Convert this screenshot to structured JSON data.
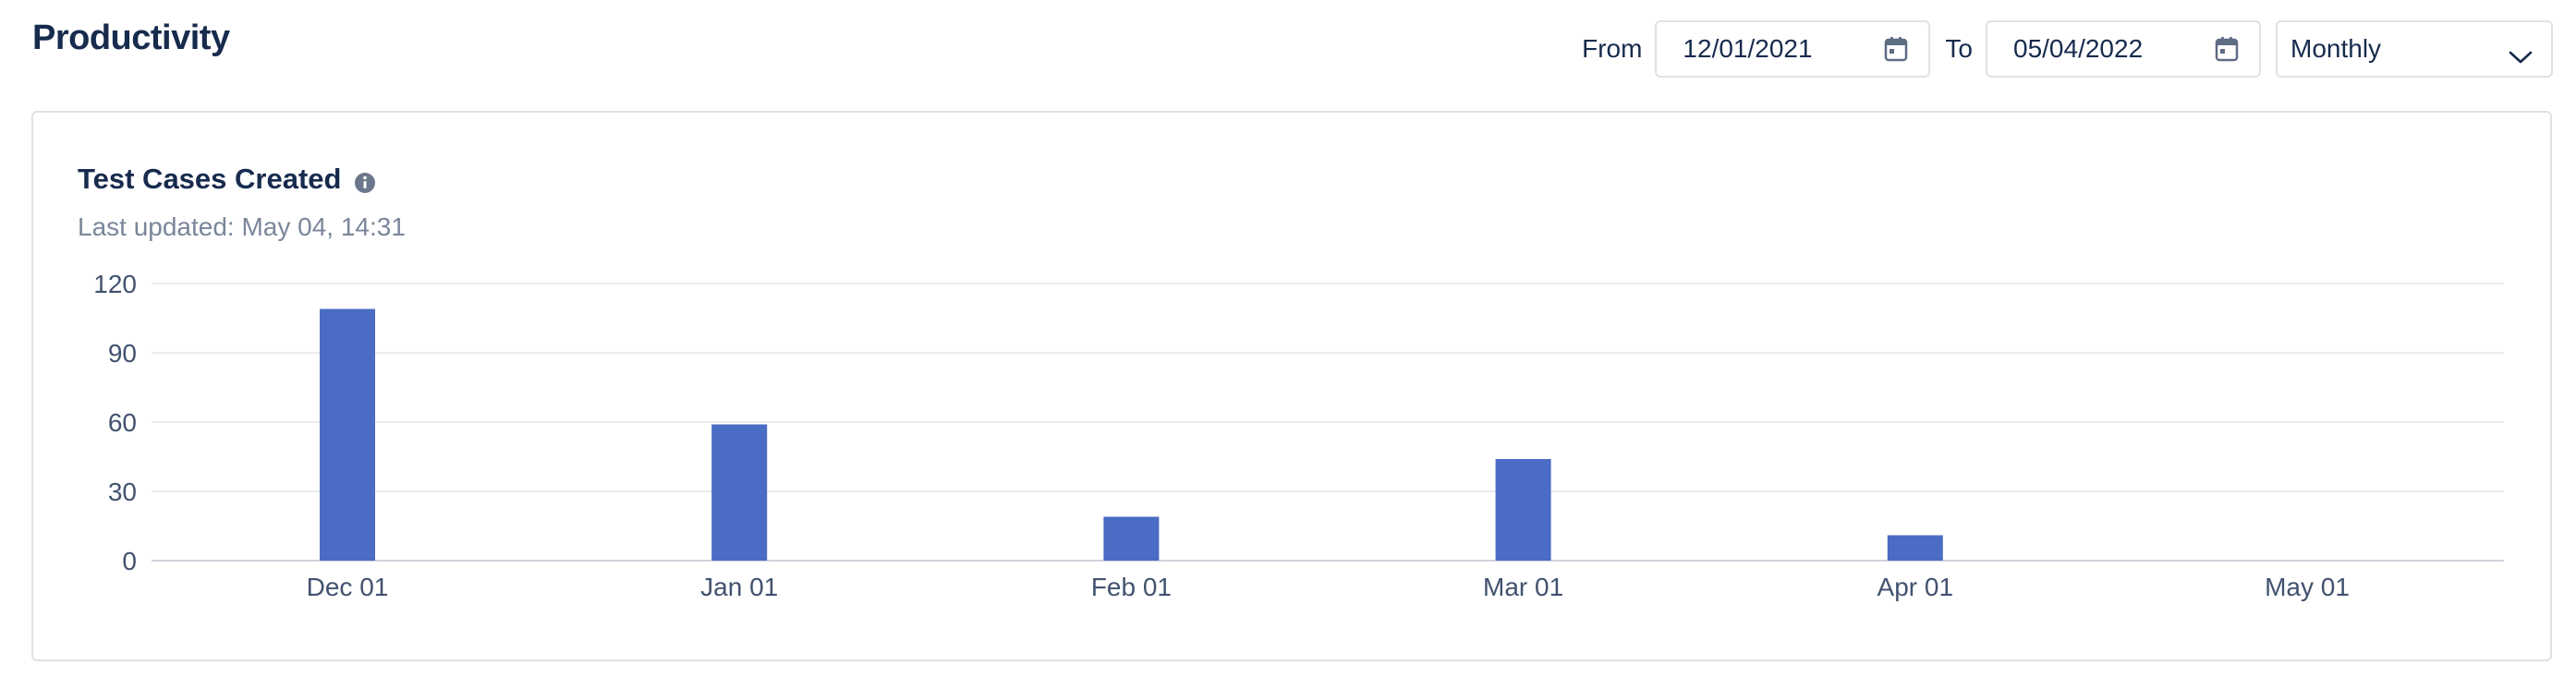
{
  "header": {
    "title": "Productivity"
  },
  "filters": {
    "from_label": "From",
    "from_value": "12/01/2021",
    "to_label": "To",
    "to_value": "05/04/2022",
    "interval_value": "Monthly"
  },
  "icons": {
    "calendar": "calendar-icon",
    "chevron": "chevron-down-icon",
    "info": "info-icon"
  },
  "card": {
    "title": "Test Cases Created",
    "last_updated": "Last updated: May 04, 14:31"
  },
  "chart_data": {
    "type": "bar",
    "categories": [
      "Dec 01",
      "Jan 01",
      "Feb 01",
      "Mar 01",
      "Apr 01",
      "May 01"
    ],
    "series": [
      {
        "values": [
          109,
          59,
          19,
          44,
          11,
          0
        ],
        "color": "#4a6cc4"
      }
    ],
    "yticks": [
      0,
      30,
      60,
      90,
      120
    ],
    "ylim": [
      0,
      120
    ],
    "grid": true,
    "legend": "none"
  }
}
